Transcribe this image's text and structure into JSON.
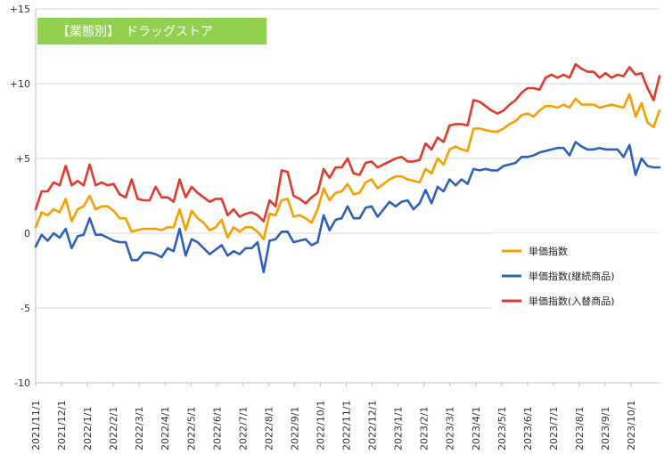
{
  "chart_data": {
    "type": "line",
    "title": "【業態別】　ドラッグストア",
    "xlabel": "",
    "ylabel": "",
    "ylim": [
      -10,
      15
    ],
    "ytick_labels": [
      "-10",
      "-5",
      "0",
      "+5",
      "+10",
      "+15"
    ],
    "ytick_values": [
      -10,
      -5,
      0,
      5,
      10,
      15
    ],
    "grid": true,
    "legend_position": "right-middle",
    "title_badge_color": "#92D050",
    "x_tick_labels": [
      "2021/11/1",
      "2021/12/1",
      "2022/1/1",
      "2022/2/1",
      "2022/3/1",
      "2022/4/1",
      "2022/5/1",
      "2022/6/1",
      "2022/7/1",
      "2022/8/1",
      "2022/9/1",
      "2022/10/1",
      "2022/11/1",
      "2022/12/1",
      "2023/1/1",
      "2023/2/1",
      "2023/3/1",
      "2023/4/1",
      "2023/5/1",
      "2023/6/1",
      "2023/7/1",
      "2023/8/1",
      "2023/9/1",
      "2023/10/1"
    ],
    "series": [
      {
        "name": "単価指数",
        "color": "#F5A000",
        "values": [
          0.4,
          1.4,
          1.2,
          1.6,
          1.4,
          2.3,
          0.8,
          1.6,
          1.8,
          2.5,
          1.6,
          1.8,
          1.8,
          1.5,
          1.0,
          1.0,
          0.1,
          0.2,
          0.3,
          0.3,
          0.3,
          0.2,
          0.4,
          0.4,
          1.6,
          0.2,
          1.5,
          1.0,
          0.7,
          0.2,
          0.4,
          0.9,
          -0.3,
          0.4,
          0.1,
          0.4,
          0.4,
          0.1,
          -0.4,
          1.3,
          1.2,
          2.2,
          2.3,
          1.1,
          1.2,
          1.0,
          0.7,
          1.6,
          3.0,
          2.2,
          2.7,
          2.8,
          3.3,
          2.6,
          2.7,
          3.4,
          3.6,
          3.0,
          3.3,
          3.6,
          3.8,
          3.8,
          3.6,
          3.5,
          3.4,
          4.3,
          4.0,
          5.0,
          4.6,
          5.6,
          5.8,
          5.6,
          5.5,
          7.0,
          7.0,
          6.9,
          6.8,
          6.8,
          7.0,
          7.3,
          7.5,
          7.9,
          8.0,
          7.8,
          8.2,
          8.5,
          8.5,
          8.4,
          8.6,
          8.4,
          9.0,
          8.6,
          8.6,
          8.6,
          8.4,
          8.5,
          8.6,
          8.5,
          8.4,
          9.3,
          7.8,
          8.7,
          7.4,
          7.1,
          8.2
        ]
      },
      {
        "name": "単価指数(継続商品)",
        "color": "#2E62B8",
        "values": [
          -0.9,
          -0.1,
          -0.5,
          0.0,
          -0.3,
          0.3,
          -1.0,
          -0.2,
          -0.1,
          1.0,
          -0.1,
          -0.1,
          -0.3,
          -0.5,
          -0.6,
          -0.6,
          -1.8,
          -1.8,
          -1.3,
          -1.3,
          -1.4,
          -1.6,
          -1.0,
          -1.2,
          0.3,
          -1.5,
          -0.4,
          -0.6,
          -1.0,
          -1.4,
          -1.1,
          -0.8,
          -1.5,
          -1.2,
          -1.4,
          -1.0,
          -1.0,
          -0.6,
          -2.6,
          -0.5,
          -0.4,
          0.1,
          0.1,
          -0.6,
          -0.5,
          -0.4,
          -0.8,
          -0.6,
          1.2,
          0.2,
          0.9,
          1.0,
          1.8,
          1.0,
          1.0,
          1.7,
          1.8,
          1.1,
          1.6,
          2.1,
          1.8,
          2.1,
          2.2,
          1.6,
          2.0,
          2.9,
          2.0,
          3.1,
          2.8,
          3.6,
          3.2,
          3.6,
          3.3,
          4.3,
          4.2,
          4.3,
          4.2,
          4.2,
          4.5,
          4.6,
          4.7,
          5.1,
          5.1,
          5.2,
          5.4,
          5.5,
          5.6,
          5.7,
          5.7,
          5.2,
          6.1,
          5.8,
          5.6,
          5.6,
          5.7,
          5.6,
          5.6,
          5.6,
          5.1,
          5.9,
          3.9,
          5.0,
          4.5,
          4.4,
          4.4
        ]
      },
      {
        "name": "単価指数(入替商品)",
        "color": "#E03A2E",
        "values": [
          1.6,
          2.8,
          2.8,
          3.4,
          3.2,
          4.5,
          3.2,
          3.5,
          3.2,
          4.6,
          3.2,
          3.4,
          3.2,
          3.3,
          2.6,
          2.4,
          3.6,
          2.3,
          2.2,
          2.2,
          3.1,
          2.4,
          2.4,
          2.1,
          3.6,
          2.4,
          3.1,
          2.7,
          2.4,
          2.1,
          2.3,
          2.3,
          1.2,
          1.6,
          1.1,
          1.3,
          1.4,
          1.2,
          0.8,
          2.2,
          1.8,
          4.2,
          4.1,
          2.5,
          2.3,
          2.0,
          2.4,
          2.7,
          4.3,
          3.7,
          4.4,
          4.4,
          5.0,
          4.0,
          3.9,
          4.7,
          4.8,
          4.4,
          4.6,
          4.8,
          5.0,
          5.1,
          4.8,
          4.8,
          4.9,
          6.0,
          5.6,
          6.4,
          6.1,
          7.2,
          7.3,
          7.3,
          7.2,
          8.9,
          8.8,
          8.5,
          8.2,
          8.0,
          8.2,
          8.6,
          8.9,
          9.4,
          9.7,
          9.7,
          9.6,
          10.4,
          10.6,
          10.4,
          10.6,
          10.4,
          11.3,
          11.0,
          10.8,
          10.8,
          10.4,
          10.7,
          10.4,
          10.6,
          10.5,
          11.1,
          10.6,
          10.7,
          9.7,
          8.9,
          10.5
        ]
      }
    ]
  }
}
